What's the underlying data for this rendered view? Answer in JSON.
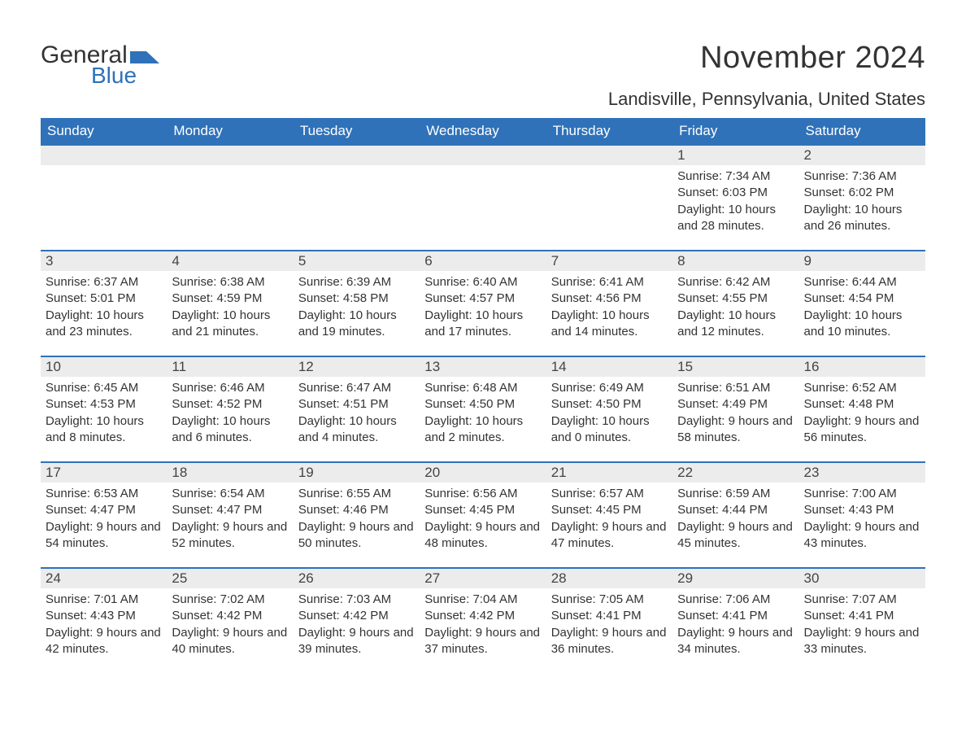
{
  "logo": {
    "text_a": "General",
    "text_b": "Blue",
    "mark_color": "#2f72b9",
    "text_a_color": "#333333",
    "text_b_color": "#2f72b9"
  },
  "title": "November 2024",
  "location": "Landisville, Pennsylvania, United States",
  "colors": {
    "header_bg": "#2f72b9",
    "header_text": "#ffffff",
    "week_border": "#2f72b9",
    "daynum_bg": "#ececec",
    "body_text": "#333333",
    "page_bg": "#ffffff"
  },
  "day_headers": [
    "Sunday",
    "Monday",
    "Tuesday",
    "Wednesday",
    "Thursday",
    "Friday",
    "Saturday"
  ],
  "weeks": [
    [
      null,
      null,
      null,
      null,
      null,
      {
        "n": "1",
        "sunrise": "Sunrise: 7:34 AM",
        "sunset": "Sunset: 6:03 PM",
        "daylight": "Daylight: 10 hours and 28 minutes."
      },
      {
        "n": "2",
        "sunrise": "Sunrise: 7:36 AM",
        "sunset": "Sunset: 6:02 PM",
        "daylight": "Daylight: 10 hours and 26 minutes."
      }
    ],
    [
      {
        "n": "3",
        "sunrise": "Sunrise: 6:37 AM",
        "sunset": "Sunset: 5:01 PM",
        "daylight": "Daylight: 10 hours and 23 minutes."
      },
      {
        "n": "4",
        "sunrise": "Sunrise: 6:38 AM",
        "sunset": "Sunset: 4:59 PM",
        "daylight": "Daylight: 10 hours and 21 minutes."
      },
      {
        "n": "5",
        "sunrise": "Sunrise: 6:39 AM",
        "sunset": "Sunset: 4:58 PM",
        "daylight": "Daylight: 10 hours and 19 minutes."
      },
      {
        "n": "6",
        "sunrise": "Sunrise: 6:40 AM",
        "sunset": "Sunset: 4:57 PM",
        "daylight": "Daylight: 10 hours and 17 minutes."
      },
      {
        "n": "7",
        "sunrise": "Sunrise: 6:41 AM",
        "sunset": "Sunset: 4:56 PM",
        "daylight": "Daylight: 10 hours and 14 minutes."
      },
      {
        "n": "8",
        "sunrise": "Sunrise: 6:42 AM",
        "sunset": "Sunset: 4:55 PM",
        "daylight": "Daylight: 10 hours and 12 minutes."
      },
      {
        "n": "9",
        "sunrise": "Sunrise: 6:44 AM",
        "sunset": "Sunset: 4:54 PM",
        "daylight": "Daylight: 10 hours and 10 minutes."
      }
    ],
    [
      {
        "n": "10",
        "sunrise": "Sunrise: 6:45 AM",
        "sunset": "Sunset: 4:53 PM",
        "daylight": "Daylight: 10 hours and 8 minutes."
      },
      {
        "n": "11",
        "sunrise": "Sunrise: 6:46 AM",
        "sunset": "Sunset: 4:52 PM",
        "daylight": "Daylight: 10 hours and 6 minutes."
      },
      {
        "n": "12",
        "sunrise": "Sunrise: 6:47 AM",
        "sunset": "Sunset: 4:51 PM",
        "daylight": "Daylight: 10 hours and 4 minutes."
      },
      {
        "n": "13",
        "sunrise": "Sunrise: 6:48 AM",
        "sunset": "Sunset: 4:50 PM",
        "daylight": "Daylight: 10 hours and 2 minutes."
      },
      {
        "n": "14",
        "sunrise": "Sunrise: 6:49 AM",
        "sunset": "Sunset: 4:50 PM",
        "daylight": "Daylight: 10 hours and 0 minutes."
      },
      {
        "n": "15",
        "sunrise": "Sunrise: 6:51 AM",
        "sunset": "Sunset: 4:49 PM",
        "daylight": "Daylight: 9 hours and 58 minutes."
      },
      {
        "n": "16",
        "sunrise": "Sunrise: 6:52 AM",
        "sunset": "Sunset: 4:48 PM",
        "daylight": "Daylight: 9 hours and 56 minutes."
      }
    ],
    [
      {
        "n": "17",
        "sunrise": "Sunrise: 6:53 AM",
        "sunset": "Sunset: 4:47 PM",
        "daylight": "Daylight: 9 hours and 54 minutes."
      },
      {
        "n": "18",
        "sunrise": "Sunrise: 6:54 AM",
        "sunset": "Sunset: 4:47 PM",
        "daylight": "Daylight: 9 hours and 52 minutes."
      },
      {
        "n": "19",
        "sunrise": "Sunrise: 6:55 AM",
        "sunset": "Sunset: 4:46 PM",
        "daylight": "Daylight: 9 hours and 50 minutes."
      },
      {
        "n": "20",
        "sunrise": "Sunrise: 6:56 AM",
        "sunset": "Sunset: 4:45 PM",
        "daylight": "Daylight: 9 hours and 48 minutes."
      },
      {
        "n": "21",
        "sunrise": "Sunrise: 6:57 AM",
        "sunset": "Sunset: 4:45 PM",
        "daylight": "Daylight: 9 hours and 47 minutes."
      },
      {
        "n": "22",
        "sunrise": "Sunrise: 6:59 AM",
        "sunset": "Sunset: 4:44 PM",
        "daylight": "Daylight: 9 hours and 45 minutes."
      },
      {
        "n": "23",
        "sunrise": "Sunrise: 7:00 AM",
        "sunset": "Sunset: 4:43 PM",
        "daylight": "Daylight: 9 hours and 43 minutes."
      }
    ],
    [
      {
        "n": "24",
        "sunrise": "Sunrise: 7:01 AM",
        "sunset": "Sunset: 4:43 PM",
        "daylight": "Daylight: 9 hours and 42 minutes."
      },
      {
        "n": "25",
        "sunrise": "Sunrise: 7:02 AM",
        "sunset": "Sunset: 4:42 PM",
        "daylight": "Daylight: 9 hours and 40 minutes."
      },
      {
        "n": "26",
        "sunrise": "Sunrise: 7:03 AM",
        "sunset": "Sunset: 4:42 PM",
        "daylight": "Daylight: 9 hours and 39 minutes."
      },
      {
        "n": "27",
        "sunrise": "Sunrise: 7:04 AM",
        "sunset": "Sunset: 4:42 PM",
        "daylight": "Daylight: 9 hours and 37 minutes."
      },
      {
        "n": "28",
        "sunrise": "Sunrise: 7:05 AM",
        "sunset": "Sunset: 4:41 PM",
        "daylight": "Daylight: 9 hours and 36 minutes."
      },
      {
        "n": "29",
        "sunrise": "Sunrise: 7:06 AM",
        "sunset": "Sunset: 4:41 PM",
        "daylight": "Daylight: 9 hours and 34 minutes."
      },
      {
        "n": "30",
        "sunrise": "Sunrise: 7:07 AM",
        "sunset": "Sunset: 4:41 PM",
        "daylight": "Daylight: 9 hours and 33 minutes."
      }
    ]
  ]
}
